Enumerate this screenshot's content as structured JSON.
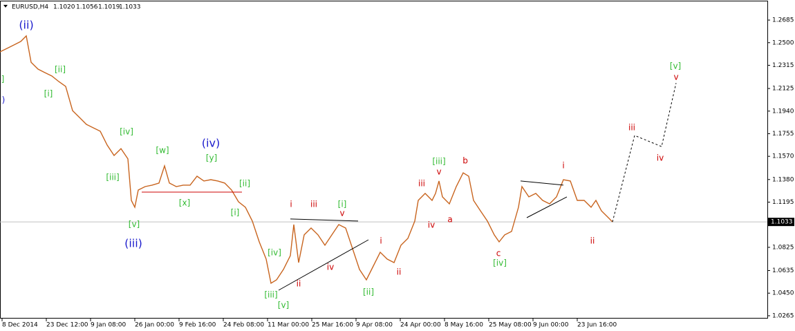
{
  "chart_data": {
    "type": "line",
    "series": [
      {
        "name": "EURUSD,H4",
        "color": "#c8641e",
        "x": [
          0,
          10,
          20,
          30,
          38,
          45,
          55,
          65,
          75,
          85,
          95,
          105,
          115,
          125,
          135,
          145,
          155,
          165,
          175,
          185,
          190,
          195,
          200,
          210,
          220,
          230,
          238,
          245,
          255,
          265,
          275,
          285,
          295,
          305,
          315,
          325,
          335,
          345,
          355,
          365,
          375,
          385,
          392,
          400,
          410,
          420,
          425,
          432,
          440,
          450,
          460,
          470,
          480,
          490,
          500,
          510,
          520,
          530,
          540,
          550,
          560,
          570,
          580,
          590,
          600,
          605,
          615,
          625,
          630,
          635,
          640,
          650,
          660,
          670,
          678,
          685,
          695,
          705,
          715,
          722,
          730,
          740,
          750,
          755,
          765,
          775,
          785,
          795,
          805,
          815,
          825,
          835,
          845,
          855,
          862,
          870,
          880,
          886
        ],
        "values": [
          1.2425,
          1.2453,
          1.2481,
          1.251,
          1.2555,
          1.234,
          1.2284,
          1.2255,
          1.2227,
          1.2182,
          1.2142,
          1.1944,
          1.1888,
          1.1831,
          1.1803,
          1.1775,
          1.1662,
          1.1577,
          1.1633,
          1.1549,
          1.1209,
          1.1153,
          1.1294,
          1.1322,
          1.1334,
          1.1351,
          1.1492,
          1.1351,
          1.1322,
          1.1334,
          1.1334,
          1.1407,
          1.1368,
          1.1379,
          1.1368,
          1.1351,
          1.1294,
          1.1198,
          1.1153,
          1.104,
          1.087,
          1.0729,
          1.0531,
          1.0559,
          1.0644,
          1.0757,
          1.1011,
          1.07,
          1.0927,
          1.0983,
          1.0927,
          1.0842,
          1.0927,
          1.1011,
          1.0983,
          1.0814,
          1.0644,
          1.0559,
          1.0672,
          1.0785,
          1.0729,
          1.07,
          1.0842,
          1.0898,
          1.104,
          1.1209,
          1.1266,
          1.1209,
          1.1266,
          1.1368,
          1.1238,
          1.1181,
          1.1322,
          1.1435,
          1.1407,
          1.1209,
          1.1124,
          1.104,
          1.0927,
          1.087,
          1.0927,
          1.0955,
          1.1153,
          1.1322,
          1.1238,
          1.1266,
          1.1209,
          1.1181,
          1.1238,
          1.1379,
          1.1368,
          1.1209,
          1.1209,
          1.1153,
          1.1209,
          1.1124,
          1.1068,
          1.1033
        ]
      }
    ],
    "ohlc": [
      "1.1020",
      "1.1056",
      "1.1019",
      "1.1033"
    ],
    "last_price": 1.1033,
    "xlim": [
      0,
      1110
    ],
    "ylim": [
      1.0242,
      1.2838
    ],
    "xticks": [
      {
        "value": 3,
        "label": "8 Dec 2014"
      },
      {
        "value": 67,
        "label": "23 Dec 12:00"
      },
      {
        "value": 131,
        "label": "9 Jan 08:00"
      },
      {
        "value": 195,
        "label": "26 Jan 00:00"
      },
      {
        "value": 259,
        "label": "9 Feb 16:00"
      },
      {
        "value": 323,
        "label": "24 Feb 08:00"
      },
      {
        "value": 387,
        "label": "11 Mar 00:00"
      },
      {
        "value": 451,
        "label": "25 Mar 16:00"
      },
      {
        "value": 515,
        "label": "9 Apr 08:00"
      },
      {
        "value": 579,
        "label": "24 Apr 00:00"
      },
      {
        "value": 643,
        "label": "8 May 16:00"
      },
      {
        "value": 707,
        "label": "25 May 08:00"
      },
      {
        "value": 771,
        "label": "9 Jun 00:00"
      },
      {
        "value": 835,
        "label": "23 Jun 16:00"
      }
    ],
    "yticks": [
      {
        "value": 1.2685,
        "label": "1.2685"
      },
      {
        "value": 1.25,
        "label": "1.2500"
      },
      {
        "value": 1.2315,
        "label": "1.2315"
      },
      {
        "value": 1.2125,
        "label": "1.2125"
      },
      {
        "value": 1.194,
        "label": "1.1940"
      },
      {
        "value": 1.1755,
        "label": "1.1755"
      },
      {
        "value": 1.157,
        "label": "1.1570"
      },
      {
        "value": 1.138,
        "label": "1.1380"
      },
      {
        "value": 1.1195,
        "label": "1.1195"
      },
      {
        "value": 1.0825,
        "label": "1.0825"
      },
      {
        "value": 1.0635,
        "label": "1.0635"
      },
      {
        "value": 1.045,
        "label": "1.0450"
      },
      {
        "value": 1.0265,
        "label": "1.0265"
      }
    ],
    "trendlines": [
      {
        "color": "#000000",
        "x": [
          403,
          533
        ],
        "values": [
          1.0474,
          1.0887
        ]
      },
      {
        "color": "#000000",
        "x": [
          420,
          518
        ],
        "values": [
          1.1057,
          1.104
        ]
      },
      {
        "color": "#000000",
        "x": [
          753,
          815
        ],
        "values": [
          1.1368,
          1.1334
        ]
      },
      {
        "color": "#000000",
        "x": [
          762,
          820
        ],
        "values": [
          1.1068,
          1.1238
        ]
      },
      {
        "color": "#cc0000",
        "x": [
          205,
          350
        ],
        "values": [
          1.1277,
          1.1277
        ]
      }
    ],
    "projection": {
      "color": "#000000",
      "x": [
        886,
        918,
        957,
        978
      ],
      "values": [
        1.1033,
        1.1741,
        1.165,
        1.217
      ]
    },
    "annotations": [
      {
        "text": "(ii)",
        "x": 38,
        "y": 1.264,
        "color": "#1a1acc"
      },
      {
        "text": "]",
        "x": 4,
        "y": 1.2199,
        "color": "#33bb33"
      },
      {
        "text": ")",
        "x": 5,
        "y": 1.2029,
        "color": "#1a1acc"
      },
      {
        "text": "[ii]",
        "x": 87,
        "y": 1.2278,
        "color": "#33bb33"
      },
      {
        "text": "[i]",
        "x": 70,
        "y": 1.208,
        "color": "#33bb33"
      },
      {
        "text": "[iv]",
        "x": 183,
        "y": 1.1769,
        "color": "#33bb33"
      },
      {
        "text": "[iii]",
        "x": 163,
        "y": 1.1396,
        "color": "#33bb33"
      },
      {
        "text": "[v]",
        "x": 194,
        "y": 1.1011,
        "color": "#33bb33"
      },
      {
        "text": "(iii)",
        "x": 193,
        "y": 1.0853,
        "color": "#1a1acc"
      },
      {
        "text": "[w]",
        "x": 235,
        "y": 1.1616,
        "color": "#33bb33"
      },
      {
        "text": "(iv)",
        "x": 305,
        "y": 1.1673,
        "color": "#1a1acc"
      },
      {
        "text": "[y]",
        "x": 306,
        "y": 1.1554,
        "color": "#33bb33"
      },
      {
        "text": "[x]",
        "x": 267,
        "y": 1.1187,
        "color": "#33bb33"
      },
      {
        "text": "[ii]",
        "x": 354,
        "y": 1.1345,
        "color": "#33bb33"
      },
      {
        "text": "[i]",
        "x": 340,
        "y": 1.1108,
        "color": "#33bb33"
      },
      {
        "text": "[iv]",
        "x": 397,
        "y": 1.078,
        "color": "#33bb33"
      },
      {
        "text": "[iii]",
        "x": 392,
        "y": 1.0435,
        "color": "#33bb33"
      },
      {
        "text": "[v]",
        "x": 410,
        "y": 1.035,
        "color": "#33bb33"
      },
      {
        "text": "i",
        "x": 421,
        "y": 1.1175,
        "color": "#cc0000"
      },
      {
        "text": "iii",
        "x": 454,
        "y": 1.1175,
        "color": "#cc0000"
      },
      {
        "text": "[i]",
        "x": 495,
        "y": 1.1175,
        "color": "#33bb33"
      },
      {
        "text": "v",
        "x": 495,
        "y": 1.1102,
        "color": "#cc0000"
      },
      {
        "text": "ii",
        "x": 432,
        "y": 1.0525,
        "color": "#cc0000"
      },
      {
        "text": "iv",
        "x": 478,
        "y": 1.0661,
        "color": "#cc0000"
      },
      {
        "text": "[ii]",
        "x": 533,
        "y": 1.0457,
        "color": "#33bb33"
      },
      {
        "text": "i",
        "x": 551,
        "y": 1.0876,
        "color": "#cc0000"
      },
      {
        "text": "ii",
        "x": 577,
        "y": 1.0621,
        "color": "#cc0000"
      },
      {
        "text": "iii",
        "x": 610,
        "y": 1.1345,
        "color": "#cc0000"
      },
      {
        "text": "iv",
        "x": 624,
        "y": 1.1006,
        "color": "#cc0000"
      },
      {
        "text": "[iii]",
        "x": 635,
        "y": 1.1526,
        "color": "#33bb33"
      },
      {
        "text": "v",
        "x": 635,
        "y": 1.1441,
        "color": "#cc0000"
      },
      {
        "text": "a",
        "x": 651,
        "y": 1.1051,
        "color": "#cc0000"
      },
      {
        "text": "b",
        "x": 673,
        "y": 1.1532,
        "color": "#cc0000"
      },
      {
        "text": "c",
        "x": 721,
        "y": 1.0774,
        "color": "#cc0000"
      },
      {
        "text": "[iv]",
        "x": 723,
        "y": 1.0695,
        "color": "#33bb33"
      },
      {
        "text": "i",
        "x": 815,
        "y": 1.1492,
        "color": "#cc0000"
      },
      {
        "text": "ii",
        "x": 857,
        "y": 1.0876,
        "color": "#cc0000"
      },
      {
        "text": "iii",
        "x": 914,
        "y": 1.1803,
        "color": "#cc0000"
      },
      {
        "text": "iv",
        "x": 955,
        "y": 1.1554,
        "color": "#cc0000"
      },
      {
        "text": "[v]",
        "x": 977,
        "y": 1.2306,
        "color": "#33bb33"
      },
      {
        "text": "v",
        "x": 978,
        "y": 1.2216,
        "color": "#cc0000"
      }
    ]
  }
}
